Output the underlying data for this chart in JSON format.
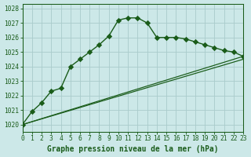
{
  "title": "Graphe pression niveau de la mer (hPa)",
  "background_color": "#cce8e8",
  "grid_color": "#aacccc",
  "line_color": "#1a5c1a",
  "x_min": 0,
  "x_max": 23,
  "y_min": 1019.5,
  "y_max": 1028.3,
  "yticks": [
    1020,
    1021,
    1022,
    1023,
    1024,
    1025,
    1026,
    1027,
    1028
  ],
  "xticks": [
    0,
    1,
    2,
    3,
    4,
    5,
    6,
    7,
    8,
    9,
    10,
    11,
    12,
    13,
    14,
    15,
    16,
    17,
    18,
    19,
    20,
    21,
    22,
    23
  ],
  "series1_x": [
    0,
    1,
    2,
    3,
    4,
    5,
    6,
    7,
    8,
    9,
    10,
    11,
    12,
    13,
    14,
    15,
    16,
    17,
    18,
    19,
    20,
    21,
    22,
    23
  ],
  "series1_y": [
    1020.0,
    1020.9,
    1021.5,
    1022.3,
    1022.5,
    1024.0,
    1024.5,
    1025.0,
    1025.5,
    1026.1,
    1027.2,
    1027.35,
    1027.35,
    1027.0,
    1026.0,
    1026.0,
    1026.0,
    1025.9,
    1025.7,
    1025.5,
    1025.3,
    1025.1,
    1025.0,
    1024.7
  ],
  "series2_x": [
    0,
    23
  ],
  "series2_y": [
    1020.0,
    1024.7
  ],
  "series3_x": [
    0,
    23
  ],
  "series3_y": [
    1020.0,
    1024.5
  ],
  "figwidth": 2.56,
  "figheight": 1.6,
  "dpi": 125
}
